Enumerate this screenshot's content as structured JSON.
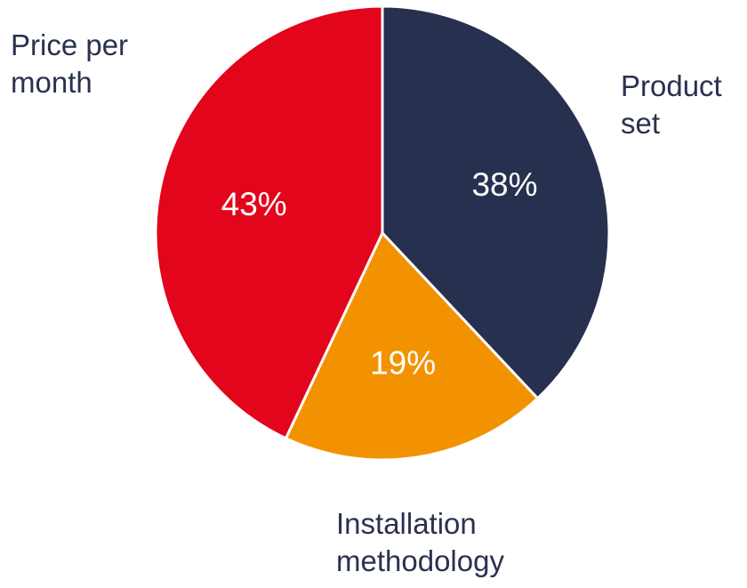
{
  "chart_data": {
    "type": "pie",
    "title": "",
    "slices": [
      {
        "label": "Product\nset",
        "value": 38,
        "value_label": "38%",
        "color": "#283050"
      },
      {
        "label": "Installation\nmethodology",
        "value": 19,
        "value_label": "19%",
        "color": "#f39200"
      },
      {
        "label": "Price per\nmonth",
        "value": 43,
        "value_label": "43%",
        "color": "#e2051c"
      }
    ],
    "start_angle": "12 o'clock",
    "direction": "clockwise",
    "legend": "none (labels placed outside slices)",
    "slice_border_color": "#ffffff"
  }
}
